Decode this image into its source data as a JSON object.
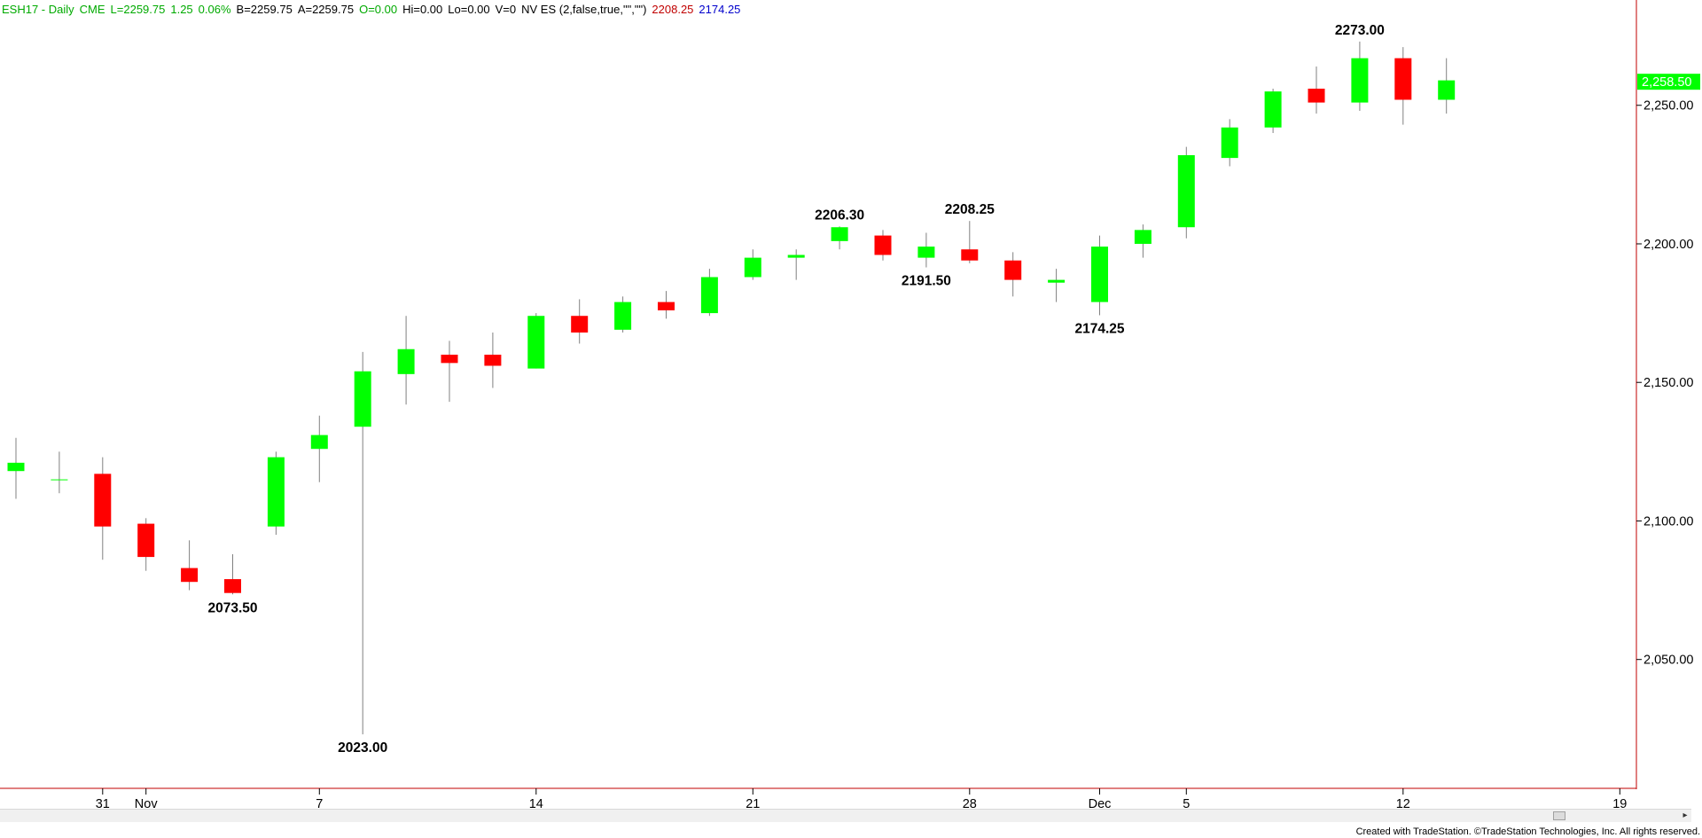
{
  "header": {
    "symbol": "ESH17 - Daily",
    "exchange": "CME",
    "last": "L=2259.75",
    "change": "1.25",
    "change_pct": "0.06%",
    "bid": "B=2259.75",
    "ask": "A=2259.75",
    "open": "O=0.00",
    "high": "Hi=0.00",
    "low": "Lo=0.00",
    "volume": "V=0",
    "indicator": "NV ES (2,false,true,\"\",\"\")",
    "indicator_high": "2208.25",
    "indicator_low": "2174.25"
  },
  "colors": {
    "up": "#00ff00",
    "down": "#ff0000",
    "wick": "#808080",
    "axis_line": "#c00000",
    "header_text": "#00aa00",
    "indicator_high": "#c00000",
    "indicator_low": "#0000cc",
    "last_bg": "#00ff00"
  },
  "chart_data": {
    "type": "candlestick",
    "ylim": [
      2003.5,
      2288.0
    ],
    "y_ticks": [
      {
        "value": 2050,
        "label": "2,050.00"
      },
      {
        "value": 2100,
        "label": "2,100.00"
      },
      {
        "value": 2150,
        "label": "2,150.00"
      },
      {
        "value": 2200,
        "label": "2,200.00"
      },
      {
        "value": 2250,
        "label": "2,250.00"
      }
    ],
    "x_ticks": [
      {
        "bar": 2,
        "label": "31"
      },
      {
        "bar": 3,
        "label": "Nov"
      },
      {
        "bar": 7,
        "label": "7"
      },
      {
        "bar": 12,
        "label": "14"
      },
      {
        "bar": 17,
        "label": "21"
      },
      {
        "bar": 22,
        "label": "28"
      },
      {
        "bar": 25,
        "label": "Dec"
      },
      {
        "bar": 27,
        "label": "5"
      },
      {
        "bar": 32,
        "label": "12"
      },
      {
        "bar": 37,
        "label": "19"
      }
    ],
    "last_price": {
      "value": 2258.5,
      "label": "2,258.50"
    },
    "candles": [
      {
        "open": 2118,
        "high": 2130,
        "low": 2108,
        "close": 2121
      },
      {
        "open": 2115,
        "high": 2125,
        "low": 2110,
        "close": 2115
      },
      {
        "open": 2117,
        "high": 2123,
        "low": 2086,
        "close": 2098
      },
      {
        "open": 2099,
        "high": 2101,
        "low": 2082,
        "close": 2087
      },
      {
        "open": 2083,
        "high": 2093,
        "low": 2075,
        "close": 2078
      },
      {
        "open": 2079,
        "high": 2088,
        "low": 2073.5,
        "close": 2074
      },
      {
        "open": 2098,
        "high": 2125,
        "low": 2095,
        "close": 2123
      },
      {
        "open": 2126,
        "high": 2138,
        "low": 2114,
        "close": 2131
      },
      {
        "open": 2134,
        "high": 2161,
        "low": 2023,
        "close": 2154
      },
      {
        "open": 2153,
        "high": 2174,
        "low": 2142,
        "close": 2162
      },
      {
        "open": 2160,
        "high": 2165,
        "low": 2143,
        "close": 2157
      },
      {
        "open": 2160,
        "high": 2168,
        "low": 2148,
        "close": 2156
      },
      {
        "open": 2155,
        "high": 2175,
        "low": 2155,
        "close": 2174
      },
      {
        "open": 2174,
        "high": 2180,
        "low": 2164,
        "close": 2168
      },
      {
        "open": 2169,
        "high": 2181,
        "low": 2168,
        "close": 2179
      },
      {
        "open": 2179,
        "high": 2183,
        "low": 2173,
        "close": 2176
      },
      {
        "open": 2175,
        "high": 2191,
        "low": 2174,
        "close": 2188
      },
      {
        "open": 2188,
        "high": 2198,
        "low": 2187,
        "close": 2195
      },
      {
        "open": 2195,
        "high": 2198,
        "low": 2187,
        "close": 2196
      },
      {
        "open": 2201,
        "high": 2206.3,
        "low": 2198,
        "close": 2206
      },
      {
        "open": 2203,
        "high": 2205,
        "low": 2194,
        "close": 2196
      },
      {
        "open": 2195,
        "high": 2204,
        "low": 2191.5,
        "close": 2199
      },
      {
        "open": 2198,
        "high": 2208.25,
        "low": 2193,
        "close": 2194
      },
      {
        "open": 2194,
        "high": 2197,
        "low": 2181,
        "close": 2187
      },
      {
        "open": 2186,
        "high": 2191,
        "low": 2179,
        "close": 2187
      },
      {
        "open": 2179,
        "high": 2203,
        "low": 2174.25,
        "close": 2199
      },
      {
        "open": 2200,
        "high": 2207,
        "low": 2195,
        "close": 2205
      },
      {
        "open": 2206,
        "high": 2235,
        "low": 2202,
        "close": 2232
      },
      {
        "open": 2231,
        "high": 2245,
        "low": 2228,
        "close": 2242
      },
      {
        "open": 2242,
        "high": 2256,
        "low": 2240,
        "close": 2255
      },
      {
        "open": 2256,
        "high": 2264,
        "low": 2247,
        "close": 2251
      },
      {
        "open": 2251,
        "high": 2273,
        "low": 2248,
        "close": 2267
      },
      {
        "open": 2267,
        "high": 2271,
        "low": 2243,
        "close": 2252
      },
      {
        "open": 2252,
        "high": 2267,
        "low": 2247,
        "close": 2259
      }
    ],
    "annotations": [
      {
        "bar": 5,
        "value": 2073.5,
        "label": "2073.50",
        "position": "below"
      },
      {
        "bar": 8,
        "value": 2023.0,
        "label": "2023.00",
        "position": "below"
      },
      {
        "bar": 19,
        "value": 2206.3,
        "label": "2206.30",
        "position": "above"
      },
      {
        "bar": 21,
        "value": 2191.5,
        "label": "2191.50",
        "position": "below"
      },
      {
        "bar": 22,
        "value": 2208.25,
        "label": "2208.25",
        "position": "above"
      },
      {
        "bar": 25,
        "value": 2174.25,
        "label": "2174.25",
        "position": "below"
      },
      {
        "bar": 31,
        "value": 2273.0,
        "label": "2273.00",
        "position": "above"
      }
    ]
  },
  "footer": "Created with TradeStation. ©TradeStation Technologies, Inc. All rights reserved."
}
